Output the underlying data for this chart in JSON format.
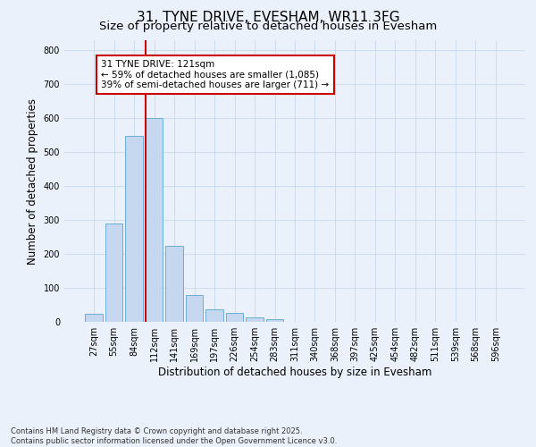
{
  "title": "31, TYNE DRIVE, EVESHAM, WR11 3FG",
  "subtitle": "Size of property relative to detached houses in Evesham",
  "xlabel": "Distribution of detached houses by size in Evesham",
  "ylabel": "Number of detached properties",
  "categories": [
    "27sqm",
    "55sqm",
    "84sqm",
    "112sqm",
    "141sqm",
    "169sqm",
    "197sqm",
    "226sqm",
    "254sqm",
    "283sqm",
    "311sqm",
    "340sqm",
    "368sqm",
    "397sqm",
    "425sqm",
    "454sqm",
    "482sqm",
    "511sqm",
    "539sqm",
    "568sqm",
    "596sqm"
  ],
  "values": [
    25,
    290,
    548,
    600,
    225,
    80,
    38,
    27,
    12,
    8,
    0,
    0,
    0,
    0,
    0,
    0,
    0,
    0,
    0,
    0,
    0
  ],
  "bar_color": "#c5d8f0",
  "bar_edge_color": "#6aaed6",
  "vline_color": "#cc0000",
  "vline_x_index": 3,
  "annotation_text": "31 TYNE DRIVE: 121sqm\n← 59% of detached houses are smaller (1,085)\n39% of semi-detached houses are larger (711) →",
  "annotation_box_color": "#ffffff",
  "annotation_box_edge_color": "#cc0000",
  "ylim": [
    0,
    830
  ],
  "yticks": [
    0,
    100,
    200,
    300,
    400,
    500,
    600,
    700,
    800
  ],
  "background_color": "#eaf1fb",
  "grid_color": "#c8d8ec",
  "footer_line1": "Contains HM Land Registry data © Crown copyright and database right 2025.",
  "footer_line2": "Contains public sector information licensed under the Open Government Licence v3.0.",
  "title_fontsize": 11,
  "subtitle_fontsize": 9.5,
  "axis_label_fontsize": 8.5,
  "tick_fontsize": 7,
  "annotation_fontsize": 7.5,
  "footer_fontsize": 6
}
